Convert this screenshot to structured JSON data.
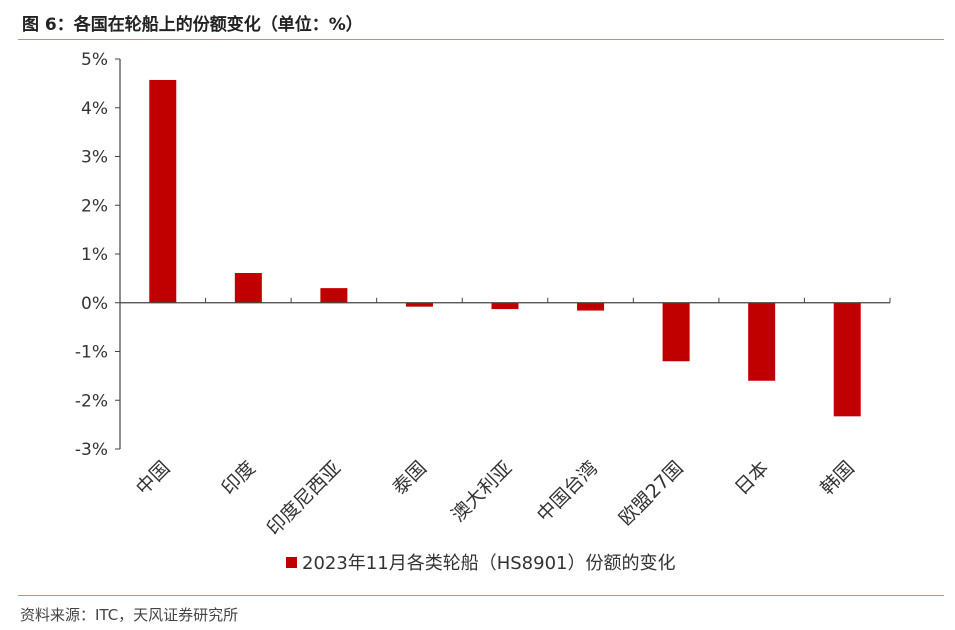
{
  "title": "图 6：各国在轮船上的份额变化（单位：%）",
  "source": "资料来源：ITC，天风证券研究所",
  "chart_data": {
    "type": "bar",
    "categories": [
      "中国",
      "印度",
      "印度尼西亚",
      "泰国",
      "澳大利亚",
      "中国台湾",
      "欧盟27国",
      "日本",
      "韩国"
    ],
    "series": [
      {
        "name": "2023年11月各类轮船（HS8901）份额的变化",
        "values": [
          4.57,
          0.61,
          0.3,
          -0.08,
          -0.13,
          -0.16,
          -1.2,
          -1.6,
          -2.33
        ],
        "color": "#c00000"
      }
    ],
    "yticks": [
      "5%",
      "4%",
      "3%",
      "2%",
      "1%",
      "0%",
      "-1%",
      "-2%",
      "-3%"
    ],
    "ylim": [
      -3,
      5
    ],
    "grid": false,
    "legend_position": "bottom"
  }
}
